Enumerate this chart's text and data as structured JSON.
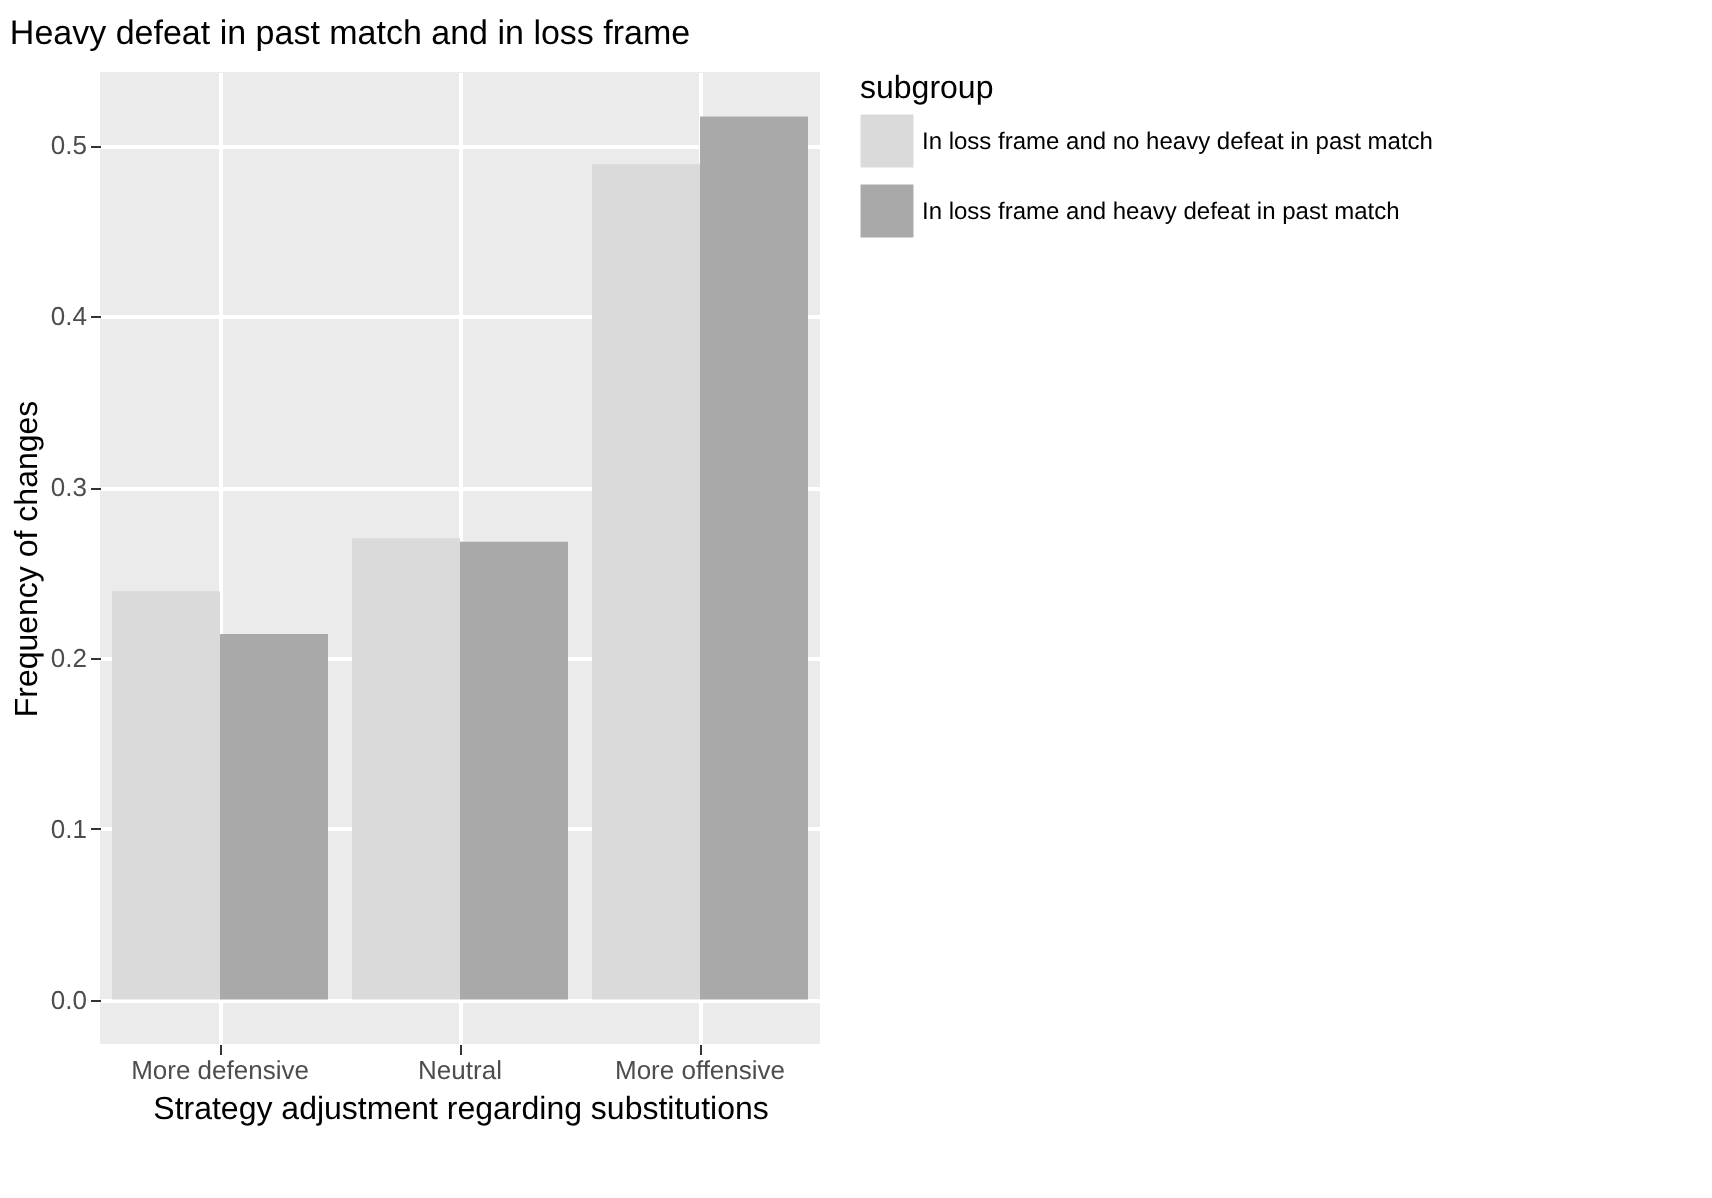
{
  "chart_data": {
    "type": "bar",
    "title": "Heavy defeat in past match and in loss frame",
    "xlabel": "Strategy adjustment regarding substitutions",
    "ylabel": "Frequency of changes",
    "legend_title": "subgroup",
    "categories": [
      "More defensive",
      "Neutral",
      "More offensive"
    ],
    "series": [
      {
        "name": "In loss frame and no heavy defeat in past match",
        "color": "#dadada",
        "values": [
          0.239,
          0.27,
          0.489
        ]
      },
      {
        "name": "In loss frame and heavy defeat in past match",
        "color": "#a9a9a9",
        "values": [
          0.214,
          0.268,
          0.517
        ]
      }
    ],
    "ylim": [
      -0.026,
      0.543
    ],
    "yticks": [
      {
        "value": 0,
        "label": "0.0"
      },
      0.1,
      0.2,
      0.3,
      0.4,
      0.5
    ],
    "grid": true,
    "legend": "right"
  }
}
